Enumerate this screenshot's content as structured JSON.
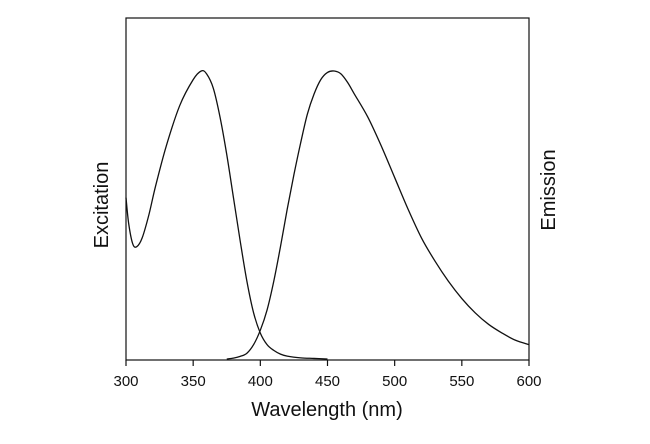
{
  "chart_data": {
    "type": "line",
    "xlabel": "Wavelength (nm)",
    "ylabel_left": "Excitation",
    "ylabel_right": "Emission",
    "xlim": [
      300,
      600
    ],
    "ylim": [
      0,
      1
    ],
    "x_ticks": [
      300,
      350,
      400,
      450,
      500,
      550,
      600
    ],
    "y_ticks_shown": false,
    "grid": false,
    "colors": {
      "line": "#111111",
      "axis": "#111111",
      "background": "#ffffff"
    },
    "series": [
      {
        "x": [
          300,
          302,
          305,
          308,
          312,
          317,
          322,
          330,
          340,
          350,
          356,
          360,
          365,
          370,
          375,
          380,
          385,
          390,
          395,
          400,
          405,
          410,
          415,
          420,
          430,
          440,
          450
        ],
        "y": [
          0.56,
          0.47,
          0.4,
          0.39,
          0.42,
          0.5,
          0.6,
          0.74,
          0.88,
          0.97,
          1.0,
          0.99,
          0.94,
          0.84,
          0.71,
          0.56,
          0.41,
          0.27,
          0.16,
          0.09,
          0.05,
          0.03,
          0.017,
          0.01,
          0.004,
          0.002,
          0.0
        ]
      },
      {
        "x": [
          375,
          380,
          385,
          390,
          395,
          400,
          405,
          410,
          415,
          420,
          425,
          430,
          435,
          440,
          445,
          450,
          455,
          460,
          465,
          470,
          480,
          490,
          500,
          510,
          520,
          530,
          540,
          550,
          560,
          570,
          580,
          590,
          600
        ],
        "y": [
          0.0,
          0.003,
          0.009,
          0.02,
          0.05,
          0.1,
          0.17,
          0.27,
          0.39,
          0.52,
          0.64,
          0.75,
          0.85,
          0.92,
          0.97,
          0.995,
          1.0,
          0.99,
          0.96,
          0.92,
          0.84,
          0.74,
          0.63,
          0.52,
          0.42,
          0.34,
          0.27,
          0.21,
          0.16,
          0.12,
          0.09,
          0.065,
          0.05
        ]
      }
    ]
  }
}
